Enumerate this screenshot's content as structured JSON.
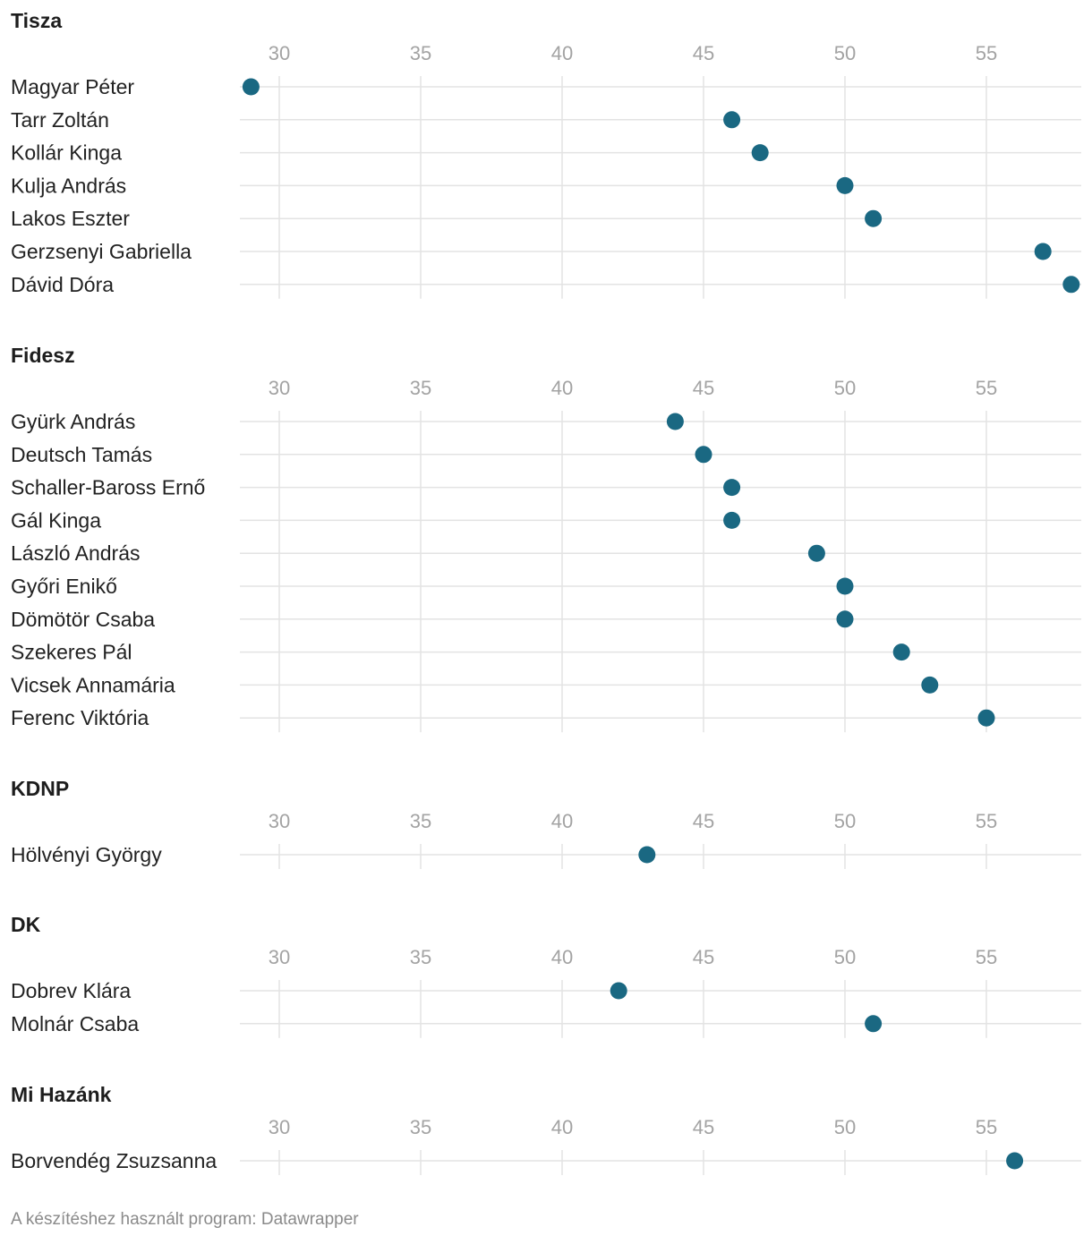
{
  "chart_data": {
    "type": "scatter",
    "subtype": "dot-plot",
    "x_ticks": [
      30,
      35,
      40,
      45,
      50,
      55
    ],
    "xlim": [
      28.6,
      58.2
    ],
    "colors": {
      "dot": "#1a6882",
      "grid": "#e3e3e3",
      "tick_text": "#a3a3a3",
      "label_text": "#222222"
    },
    "groups": [
      {
        "name": "Tisza",
        "rows": [
          {
            "label": "Magyar Péter",
            "value": 29
          },
          {
            "label": "Tarr Zoltán",
            "value": 46
          },
          {
            "label": "Kollár Kinga",
            "value": 47
          },
          {
            "label": "Kulja András",
            "value": 50
          },
          {
            "label": "Lakos Eszter",
            "value": 51
          },
          {
            "label": "Gerzsenyi Gabriella",
            "value": 57
          },
          {
            "label": "Dávid Dóra",
            "value": 58
          }
        ]
      },
      {
        "name": "Fidesz",
        "rows": [
          {
            "label": "Gyürk András",
            "value": 44
          },
          {
            "label": "Deutsch Tamás",
            "value": 45
          },
          {
            "label": "Schaller-Baross Ernő",
            "value": 46
          },
          {
            "label": "Gál Kinga",
            "value": 46
          },
          {
            "label": "László András",
            "value": 49
          },
          {
            "label": "Győri Enikő",
            "value": 50
          },
          {
            "label": "Dömötör Csaba",
            "value": 50
          },
          {
            "label": "Szekeres Pál",
            "value": 52
          },
          {
            "label": "Vicsek Annamária",
            "value": 53
          },
          {
            "label": "Ferenc Viktória",
            "value": 55
          }
        ]
      },
      {
        "name": "KDNP",
        "rows": [
          {
            "label": "Hölvényi György",
            "value": 43
          }
        ]
      },
      {
        "name": "DK",
        "rows": [
          {
            "label": "Dobrev Klára",
            "value": 42
          },
          {
            "label": "Molnár Csaba",
            "value": 51
          }
        ]
      },
      {
        "name": "Mi Hazánk",
        "rows": [
          {
            "label": "Borvendég Zsuzsanna",
            "value": 56
          }
        ]
      }
    ]
  },
  "footer": "A készítéshez használt program: Datawrapper"
}
